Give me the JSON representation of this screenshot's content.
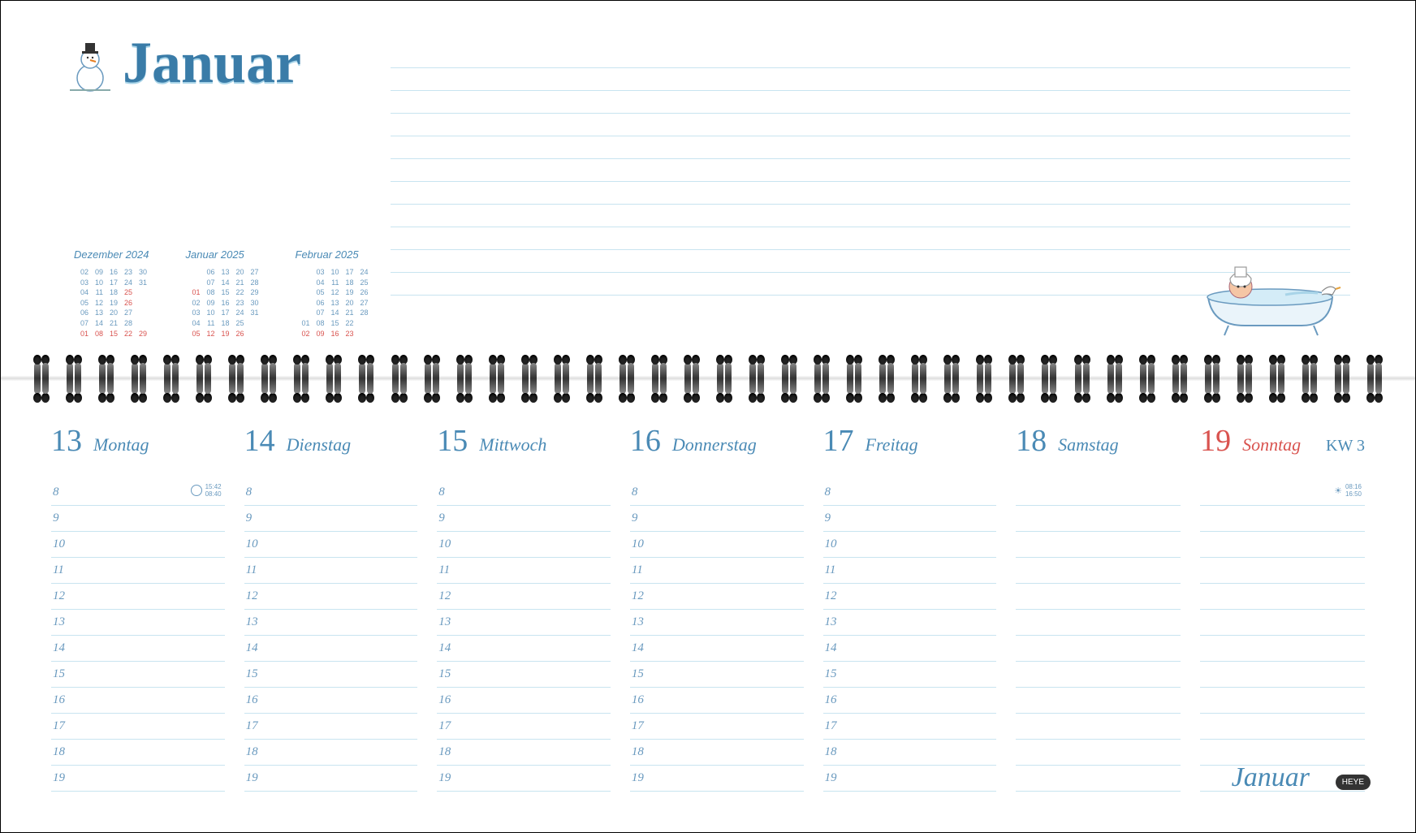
{
  "month_title": "Januar",
  "footer_month": "Januar",
  "publisher": "HEYE",
  "kw_label": "KW 3",
  "colors": {
    "primary": "#4a8ab5",
    "sunday": "#d9534f",
    "line": "#c8e4f0",
    "text_soft": "#6a9abf"
  },
  "mini_calendars": [
    {
      "title": "Dezember 2024",
      "rows": [
        [
          {
            "v": "02"
          },
          {
            "v": "09"
          },
          {
            "v": "16"
          },
          {
            "v": "23"
          },
          {
            "v": "30"
          }
        ],
        [
          {
            "v": "03"
          },
          {
            "v": "10"
          },
          {
            "v": "17"
          },
          {
            "v": "24"
          },
          {
            "v": "31"
          }
        ],
        [
          {
            "v": "04"
          },
          {
            "v": "11"
          },
          {
            "v": "18"
          },
          {
            "v": "25",
            "red": true
          },
          {
            "v": ""
          }
        ],
        [
          {
            "v": "05"
          },
          {
            "v": "12"
          },
          {
            "v": "19"
          },
          {
            "v": "26",
            "red": true
          },
          {
            "v": ""
          }
        ],
        [
          {
            "v": "06"
          },
          {
            "v": "13"
          },
          {
            "v": "20"
          },
          {
            "v": "27"
          },
          {
            "v": ""
          }
        ],
        [
          {
            "v": "07"
          },
          {
            "v": "14"
          },
          {
            "v": "21"
          },
          {
            "v": "28"
          },
          {
            "v": ""
          }
        ],
        [
          {
            "v": "01",
            "red": true
          },
          {
            "v": "08",
            "red": true
          },
          {
            "v": "15",
            "red": true
          },
          {
            "v": "22",
            "red": true
          },
          {
            "v": "29",
            "red": true
          }
        ]
      ]
    },
    {
      "title": "Januar 2025",
      "rows": [
        [
          {
            "v": ""
          },
          {
            "v": "06"
          },
          {
            "v": "13"
          },
          {
            "v": "20"
          },
          {
            "v": "27"
          }
        ],
        [
          {
            "v": ""
          },
          {
            "v": "07"
          },
          {
            "v": "14"
          },
          {
            "v": "21"
          },
          {
            "v": "28"
          }
        ],
        [
          {
            "v": "01",
            "red": true
          },
          {
            "v": "08"
          },
          {
            "v": "15"
          },
          {
            "v": "22"
          },
          {
            "v": "29"
          }
        ],
        [
          {
            "v": "02"
          },
          {
            "v": "09"
          },
          {
            "v": "16"
          },
          {
            "v": "23"
          },
          {
            "v": "30"
          }
        ],
        [
          {
            "v": "03"
          },
          {
            "v": "10"
          },
          {
            "v": "17"
          },
          {
            "v": "24"
          },
          {
            "v": "31"
          }
        ],
        [
          {
            "v": "04"
          },
          {
            "v": "11"
          },
          {
            "v": "18"
          },
          {
            "v": "25"
          },
          {
            "v": ""
          }
        ],
        [
          {
            "v": "05",
            "red": true
          },
          {
            "v": "12",
            "red": true
          },
          {
            "v": "19",
            "red": true
          },
          {
            "v": "26",
            "red": true
          },
          {
            "v": ""
          }
        ]
      ]
    },
    {
      "title": "Februar 2025",
      "rows": [
        [
          {
            "v": ""
          },
          {
            "v": "03"
          },
          {
            "v": "10"
          },
          {
            "v": "17"
          },
          {
            "v": "24"
          }
        ],
        [
          {
            "v": ""
          },
          {
            "v": "04"
          },
          {
            "v": "11"
          },
          {
            "v": "18"
          },
          {
            "v": "25"
          }
        ],
        [
          {
            "v": ""
          },
          {
            "v": "05"
          },
          {
            "v": "12"
          },
          {
            "v": "19"
          },
          {
            "v": "26"
          }
        ],
        [
          {
            "v": ""
          },
          {
            "v": "06"
          },
          {
            "v": "13"
          },
          {
            "v": "20"
          },
          {
            "v": "27"
          }
        ],
        [
          {
            "v": ""
          },
          {
            "v": "07"
          },
          {
            "v": "14"
          },
          {
            "v": "21"
          },
          {
            "v": "28"
          }
        ],
        [
          {
            "v": "01"
          },
          {
            "v": "08"
          },
          {
            "v": "15"
          },
          {
            "v": "22"
          },
          {
            "v": ""
          }
        ],
        [
          {
            "v": "02",
            "red": true
          },
          {
            "v": "09",
            "red": true
          },
          {
            "v": "16",
            "red": true
          },
          {
            "v": "23",
            "red": true
          },
          {
            "v": ""
          }
        ]
      ]
    }
  ],
  "days": [
    {
      "num": "13",
      "name": "Montag",
      "hours": [
        "8",
        "9",
        "10",
        "11",
        "12",
        "13",
        "14",
        "15",
        "16",
        "17",
        "18",
        "19"
      ],
      "moon": {
        "icon": "circle",
        "t1": "15:42",
        "t2": "08:40"
      }
    },
    {
      "num": "14",
      "name": "Dienstag",
      "hours": [
        "8",
        "9",
        "10",
        "11",
        "12",
        "13",
        "14",
        "15",
        "16",
        "17",
        "18",
        "19"
      ]
    },
    {
      "num": "15",
      "name": "Mittwoch",
      "hours": [
        "8",
        "9",
        "10",
        "11",
        "12",
        "13",
        "14",
        "15",
        "16",
        "17",
        "18",
        "19"
      ]
    },
    {
      "num": "16",
      "name": "Donnerstag",
      "hours": [
        "8",
        "9",
        "10",
        "11",
        "12",
        "13",
        "14",
        "15",
        "16",
        "17",
        "18",
        "19"
      ]
    },
    {
      "num": "17",
      "name": "Freitag",
      "hours": [
        "8",
        "9",
        "10",
        "11",
        "12",
        "13",
        "14",
        "15",
        "16",
        "17",
        "18",
        "19"
      ]
    },
    {
      "num": "18",
      "name": "Samstag",
      "hours": [
        "",
        "",
        "",
        "",
        "",
        "",
        "",
        "",
        "",
        "",
        "",
        ""
      ],
      "weekend": true
    },
    {
      "num": "19",
      "name": "Sonntag",
      "hours": [
        "",
        "",
        "",
        "",
        "",
        "",
        "",
        "",
        "",
        "",
        "",
        ""
      ],
      "weekend": true,
      "sunday": true,
      "sun": {
        "t1": "08:16",
        "t2": "16:50"
      }
    }
  ],
  "notes_line_count": 11,
  "spiral_count": 42
}
